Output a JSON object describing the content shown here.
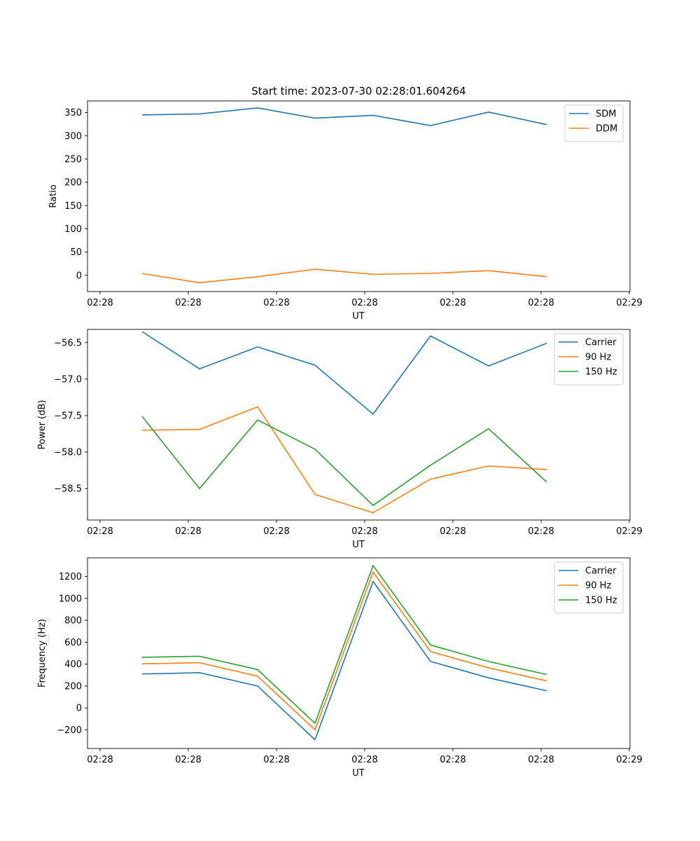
{
  "chart_data": [
    {
      "type": "line",
      "title": "Start time: 2023-07-30 02:28:01.604264",
      "xlabel": "UT",
      "ylabel": "Ratio",
      "ylim": [
        -35,
        375
      ],
      "x_tick_labels": [
        "02:28",
        "02:28",
        "02:28",
        "02:28",
        "02:28",
        "02:28",
        "02:28"
      ],
      "x_end_tick_label": "02:29",
      "y_ticks": [
        0,
        50,
        100,
        150,
        200,
        250,
        300,
        350
      ],
      "legend": "top-right",
      "series": [
        {
          "name": "SDM",
          "color": "#1f77b4",
          "values": [
            345,
            347,
            360,
            338,
            344,
            322,
            351,
            324
          ]
        },
        {
          "name": "DDM",
          "color": "#ff7f0e",
          "values": [
            4,
            -16,
            -3,
            13,
            2,
            4,
            10,
            -3
          ]
        }
      ]
    },
    {
      "type": "line",
      "title": "",
      "xlabel": "UT",
      "ylabel": "Power (dB)",
      "ylim": [
        -58.93,
        -56.32
      ],
      "x_tick_labels": [
        "02:28",
        "02:28",
        "02:28",
        "02:28",
        "02:28",
        "02:28",
        "02:28"
      ],
      "x_end_tick_label": "02:29",
      "y_ticks": [
        -58.5,
        -58.0,
        -57.5,
        -57.0,
        -56.5
      ],
      "legend": "top-right",
      "series": [
        {
          "name": "Carrier",
          "color": "#1f77b4",
          "values": [
            -56.35,
            -56.86,
            -56.56,
            -56.81,
            -57.48,
            -56.41,
            -56.82,
            -56.51
          ]
        },
        {
          "name": "90 Hz",
          "color": "#ff7f0e",
          "values": [
            -57.7,
            -57.69,
            -57.38,
            -58.58,
            -58.83,
            -58.37,
            -58.19,
            -58.24
          ]
        },
        {
          "name": "150 Hz",
          "color": "#2ca02c",
          "values": [
            -57.51,
            -58.5,
            -57.56,
            -57.96,
            -58.73,
            -58.18,
            -57.68,
            -58.41
          ]
        }
      ]
    },
    {
      "type": "line",
      "title": "",
      "xlabel": "UT",
      "ylabel": "Frequency (Hz)",
      "ylim": [
        -370,
        1370
      ],
      "x_tick_labels": [
        "02:28",
        "02:28",
        "02:28",
        "02:28",
        "02:28",
        "02:28",
        "02:28"
      ],
      "x_end_tick_label": "02:29",
      "y_ticks": [
        -200,
        0,
        200,
        400,
        600,
        800,
        1000,
        1200
      ],
      "legend": "top-right",
      "series": [
        {
          "name": "Carrier",
          "color": "#1f77b4",
          "values": [
            310,
            322,
            200,
            -290,
            1155,
            425,
            275,
            157
          ]
        },
        {
          "name": "90 Hz",
          "color": "#ff7f0e",
          "values": [
            403,
            413,
            290,
            -200,
            1240,
            515,
            366,
            247
          ]
        },
        {
          "name": "150 Hz",
          "color": "#2ca02c",
          "values": [
            462,
            472,
            350,
            -140,
            1300,
            575,
            424,
            305
          ]
        }
      ]
    }
  ]
}
